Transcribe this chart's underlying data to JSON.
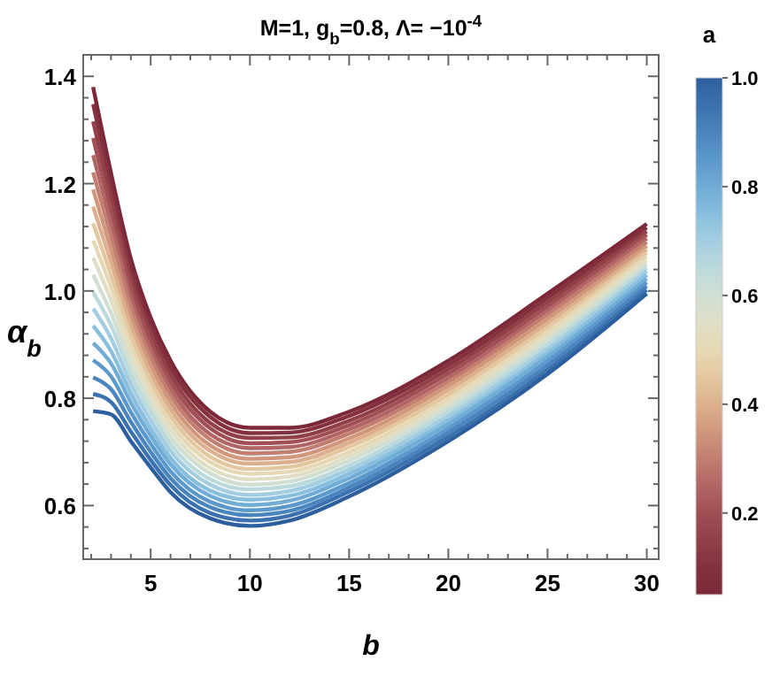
{
  "chart_data": {
    "type": "line",
    "title": "M=1,  g$_{b}$=0.8,  Λ= −10$^{-4}$",
    "xlabel": "b",
    "ylabel": "α$_{b}$",
    "clabel": "a",
    "clim": [
      0.05,
      1.0
    ],
    "cticks": [
      0.2,
      0.4,
      0.6,
      0.8,
      {
        "value": 1,
        "label": "1.0"
      }
    ],
    "x": [
      2.1,
      3,
      4,
      5,
      6,
      8,
      10,
      12,
      15,
      20,
      25,
      30
    ],
    "xlim": [
      1.6,
      30.6
    ],
    "ylim": [
      0.5,
      1.44
    ],
    "xticks": [
      {
        "value": 2,
        "label": null
      },
      {
        "value": 3,
        "label": null
      },
      {
        "value": 4,
        "label": null
      },
      5,
      {
        "value": 6,
        "label": null
      },
      {
        "value": 7,
        "label": null
      },
      {
        "value": 8,
        "label": null
      },
      {
        "value": 9,
        "label": null
      },
      10,
      {
        "value": 11,
        "label": null
      },
      {
        "value": 12,
        "label": null
      },
      {
        "value": 13,
        "label": null
      },
      {
        "value": 14,
        "label": null
      },
      15,
      {
        "value": 16,
        "label": null
      },
      {
        "value": 17,
        "label": null
      },
      {
        "value": 18,
        "label": null
      },
      {
        "value": 19,
        "label": null
      },
      20,
      {
        "value": 21,
        "label": null
      },
      {
        "value": 22,
        "label": null
      },
      {
        "value": 23,
        "label": null
      },
      {
        "value": 24,
        "label": null
      },
      25,
      {
        "value": 26,
        "label": null
      },
      {
        "value": 27,
        "label": null
      },
      {
        "value": 28,
        "label": null
      },
      {
        "value": 29,
        "label": null
      },
      30
    ],
    "yticks": [
      {
        "value": 0.52,
        "label": null
      },
      {
        "value": 0.56,
        "label": null
      },
      {
        "value": 0.6,
        "label": "0.6"
      },
      {
        "value": 0.64,
        "label": null
      },
      {
        "value": 0.68,
        "label": null
      },
      {
        "value": 0.72,
        "label": null
      },
      {
        "value": 0.76,
        "label": null
      },
      {
        "value": 0.8,
        "label": "0.8"
      },
      {
        "value": 0.84,
        "label": null
      },
      {
        "value": 0.88,
        "label": null
      },
      {
        "value": 0.92,
        "label": null
      },
      {
        "value": 0.96,
        "label": null
      },
      {
        "value": 1.0,
        "label": "1.0"
      },
      {
        "value": 1.04,
        "label": null
      },
      {
        "value": 1.08,
        "label": null
      },
      {
        "value": 1.12,
        "label": null
      },
      {
        "value": 1.16,
        "label": null
      },
      {
        "value": 1.2,
        "label": "1.2"
      },
      {
        "value": 1.24,
        "label": null
      },
      {
        "value": 1.28,
        "label": null
      },
      {
        "value": 1.32,
        "label": null
      },
      {
        "value": 1.36,
        "label": null
      },
      {
        "value": 1.4,
        "label": "1.4"
      }
    ],
    "grid": false,
    "marker": "none",
    "line_style": "solid",
    "series": [
      {
        "color": "#7c2838",
        "values": [
          1.38,
          1.22,
          1.06,
          0.95,
          0.87,
          0.775,
          0.745,
          0.745,
          0.775,
          0.87,
          0.995,
          1.125
        ]
      },
      {
        "color": "#85303f",
        "values": [
          1.348,
          1.196,
          1.042,
          0.935,
          0.857,
          0.765,
          0.735,
          0.736,
          0.767,
          0.862,
          0.987,
          1.118
        ]
      },
      {
        "color": "#924048",
        "values": [
          1.316,
          1.173,
          1.024,
          0.921,
          0.844,
          0.754,
          0.726,
          0.727,
          0.758,
          0.854,
          0.979,
          1.111
        ]
      },
      {
        "color": "#a14f55",
        "values": [
          1.285,
          1.149,
          1.006,
          0.906,
          0.831,
          0.744,
          0.716,
          0.718,
          0.75,
          0.846,
          0.971,
          1.105
        ]
      },
      {
        "color": "#b26565",
        "values": [
          1.253,
          1.125,
          0.988,
          0.891,
          0.818,
          0.733,
          0.707,
          0.709,
          0.742,
          0.838,
          0.963,
          1.098
        ]
      },
      {
        "color": "#c27e70",
        "values": [
          1.221,
          1.102,
          0.971,
          0.877,
          0.806,
          0.723,
          0.697,
          0.7,
          0.734,
          0.831,
          0.956,
          1.091
        ]
      },
      {
        "color": "#d0977d",
        "values": [
          1.189,
          1.078,
          0.953,
          0.862,
          0.793,
          0.712,
          0.687,
          0.69,
          0.725,
          0.823,
          0.948,
          1.084
        ]
      },
      {
        "color": "#dcb08e",
        "values": [
          1.157,
          1.054,
          0.935,
          0.847,
          0.78,
          0.702,
          0.678,
          0.681,
          0.717,
          0.815,
          0.94,
          1.077
        ]
      },
      {
        "color": "#e3c7a0",
        "values": [
          1.126,
          1.03,
          0.917,
          0.832,
          0.767,
          0.691,
          0.668,
          0.672,
          0.709,
          0.807,
          0.932,
          1.071
        ]
      },
      {
        "color": "#e6d8b4",
        "values": [
          1.094,
          1.007,
          0.899,
          0.818,
          0.754,
          0.681,
          0.659,
          0.663,
          0.7,
          0.799,
          0.924,
          1.064
        ]
      },
      {
        "color": "#e0dfc6",
        "values": [
          1.062,
          0.983,
          0.881,
          0.803,
          0.741,
          0.67,
          0.649,
          0.654,
          0.692,
          0.791,
          0.916,
          1.057
        ]
      },
      {
        "color": "#d1dfd3",
        "values": [
          1.03,
          0.959,
          0.863,
          0.788,
          0.728,
          0.66,
          0.639,
          0.645,
          0.684,
          0.783,
          0.908,
          1.05
        ]
      },
      {
        "color": "#bcd9dc",
        "values": [
          0.998,
          0.936,
          0.845,
          0.774,
          0.715,
          0.649,
          0.63,
          0.636,
          0.675,
          0.775,
          0.9,
          1.043
        ]
      },
      {
        "color": "#a3cde0",
        "values": [
          0.967,
          0.912,
          0.827,
          0.759,
          0.702,
          0.639,
          0.62,
          0.627,
          0.667,
          0.767,
          0.892,
          1.037
        ]
      },
      {
        "color": "#88bede",
        "values": [
          0.935,
          0.888,
          0.809,
          0.744,
          0.689,
          0.628,
          0.611,
          0.618,
          0.659,
          0.759,
          0.884,
          1.03
        ]
      },
      {
        "color": "#70acd6",
        "values": [
          0.903,
          0.865,
          0.792,
          0.73,
          0.677,
          0.618,
          0.601,
          0.609,
          0.651,
          0.752,
          0.877,
          1.023
        ]
      },
      {
        "color": "#5b98cb",
        "values": [
          0.871,
          0.841,
          0.774,
          0.715,
          0.664,
          0.607,
          0.591,
          0.599,
          0.642,
          0.744,
          0.869,
          1.016
        ]
      },
      {
        "color": "#4a85bd",
        "values": [
          0.839,
          0.817,
          0.756,
          0.7,
          0.651,
          0.597,
          0.582,
          0.59,
          0.634,
          0.736,
          0.861,
          1.009
        ]
      },
      {
        "color": "#3b71ae",
        "values": [
          0.808,
          0.793,
          0.738,
          0.685,
          0.638,
          0.586,
          0.572,
          0.581,
          0.626,
          0.728,
          0.853,
          1.002
        ]
      },
      {
        "color": "#2d5e9e",
        "values": [
          0.776,
          0.77,
          0.72,
          0.671,
          0.625,
          0.576,
          0.562,
          0.572,
          0.617,
          0.72,
          0.845,
          0.995
        ]
      }
    ]
  }
}
